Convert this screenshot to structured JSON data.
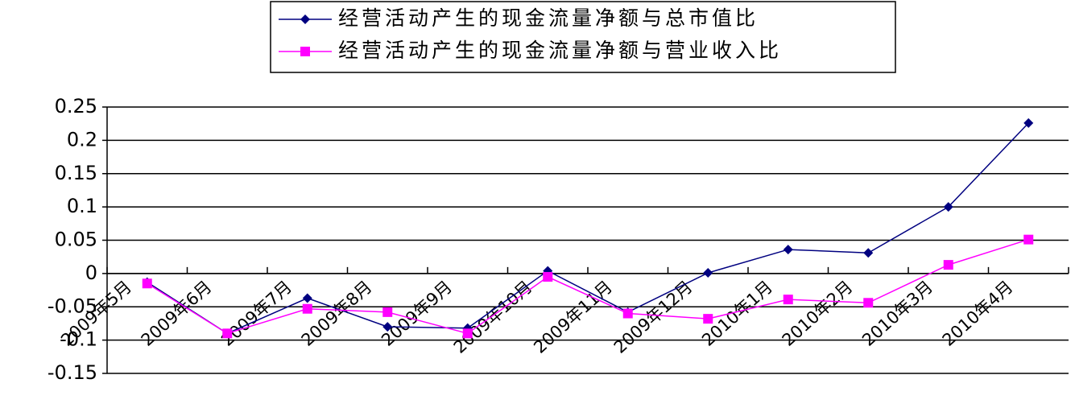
{
  "chart_data": {
    "type": "line",
    "categories": [
      "2009年5月",
      "2009年6月",
      "2009年7月",
      "2009年8月",
      "2009年9月",
      "2009年10月",
      "2009年11月",
      "2009年12月",
      "2010年1月",
      "2010年2月",
      "2010年3月",
      "2010年4月"
    ],
    "series": [
      {
        "name": "经营活动产生的现金流量净额与总市值比",
        "color": "#000080",
        "marker": "diamond",
        "values": [
          -0.013,
          -0.09,
          -0.037,
          -0.08,
          -0.082,
          0.004,
          -0.058,
          0.001,
          0.036,
          0.031,
          0.1,
          0.226
        ]
      },
      {
        "name": "经营活动产生的现金流量净额与营业收入比",
        "color": "#ff00ff",
        "marker": "square",
        "values": [
          -0.015,
          -0.09,
          -0.053,
          -0.058,
          -0.09,
          -0.005,
          -0.06,
          -0.068,
          -0.039,
          -0.044,
          0.013,
          0.051
        ]
      }
    ],
    "ylim": [
      -0.15,
      0.25
    ],
    "yticks": [
      0.25,
      0.2,
      0.15,
      0.1,
      0.05,
      0,
      -0.05,
      -0.1,
      -0.15
    ],
    "grid": true
  }
}
